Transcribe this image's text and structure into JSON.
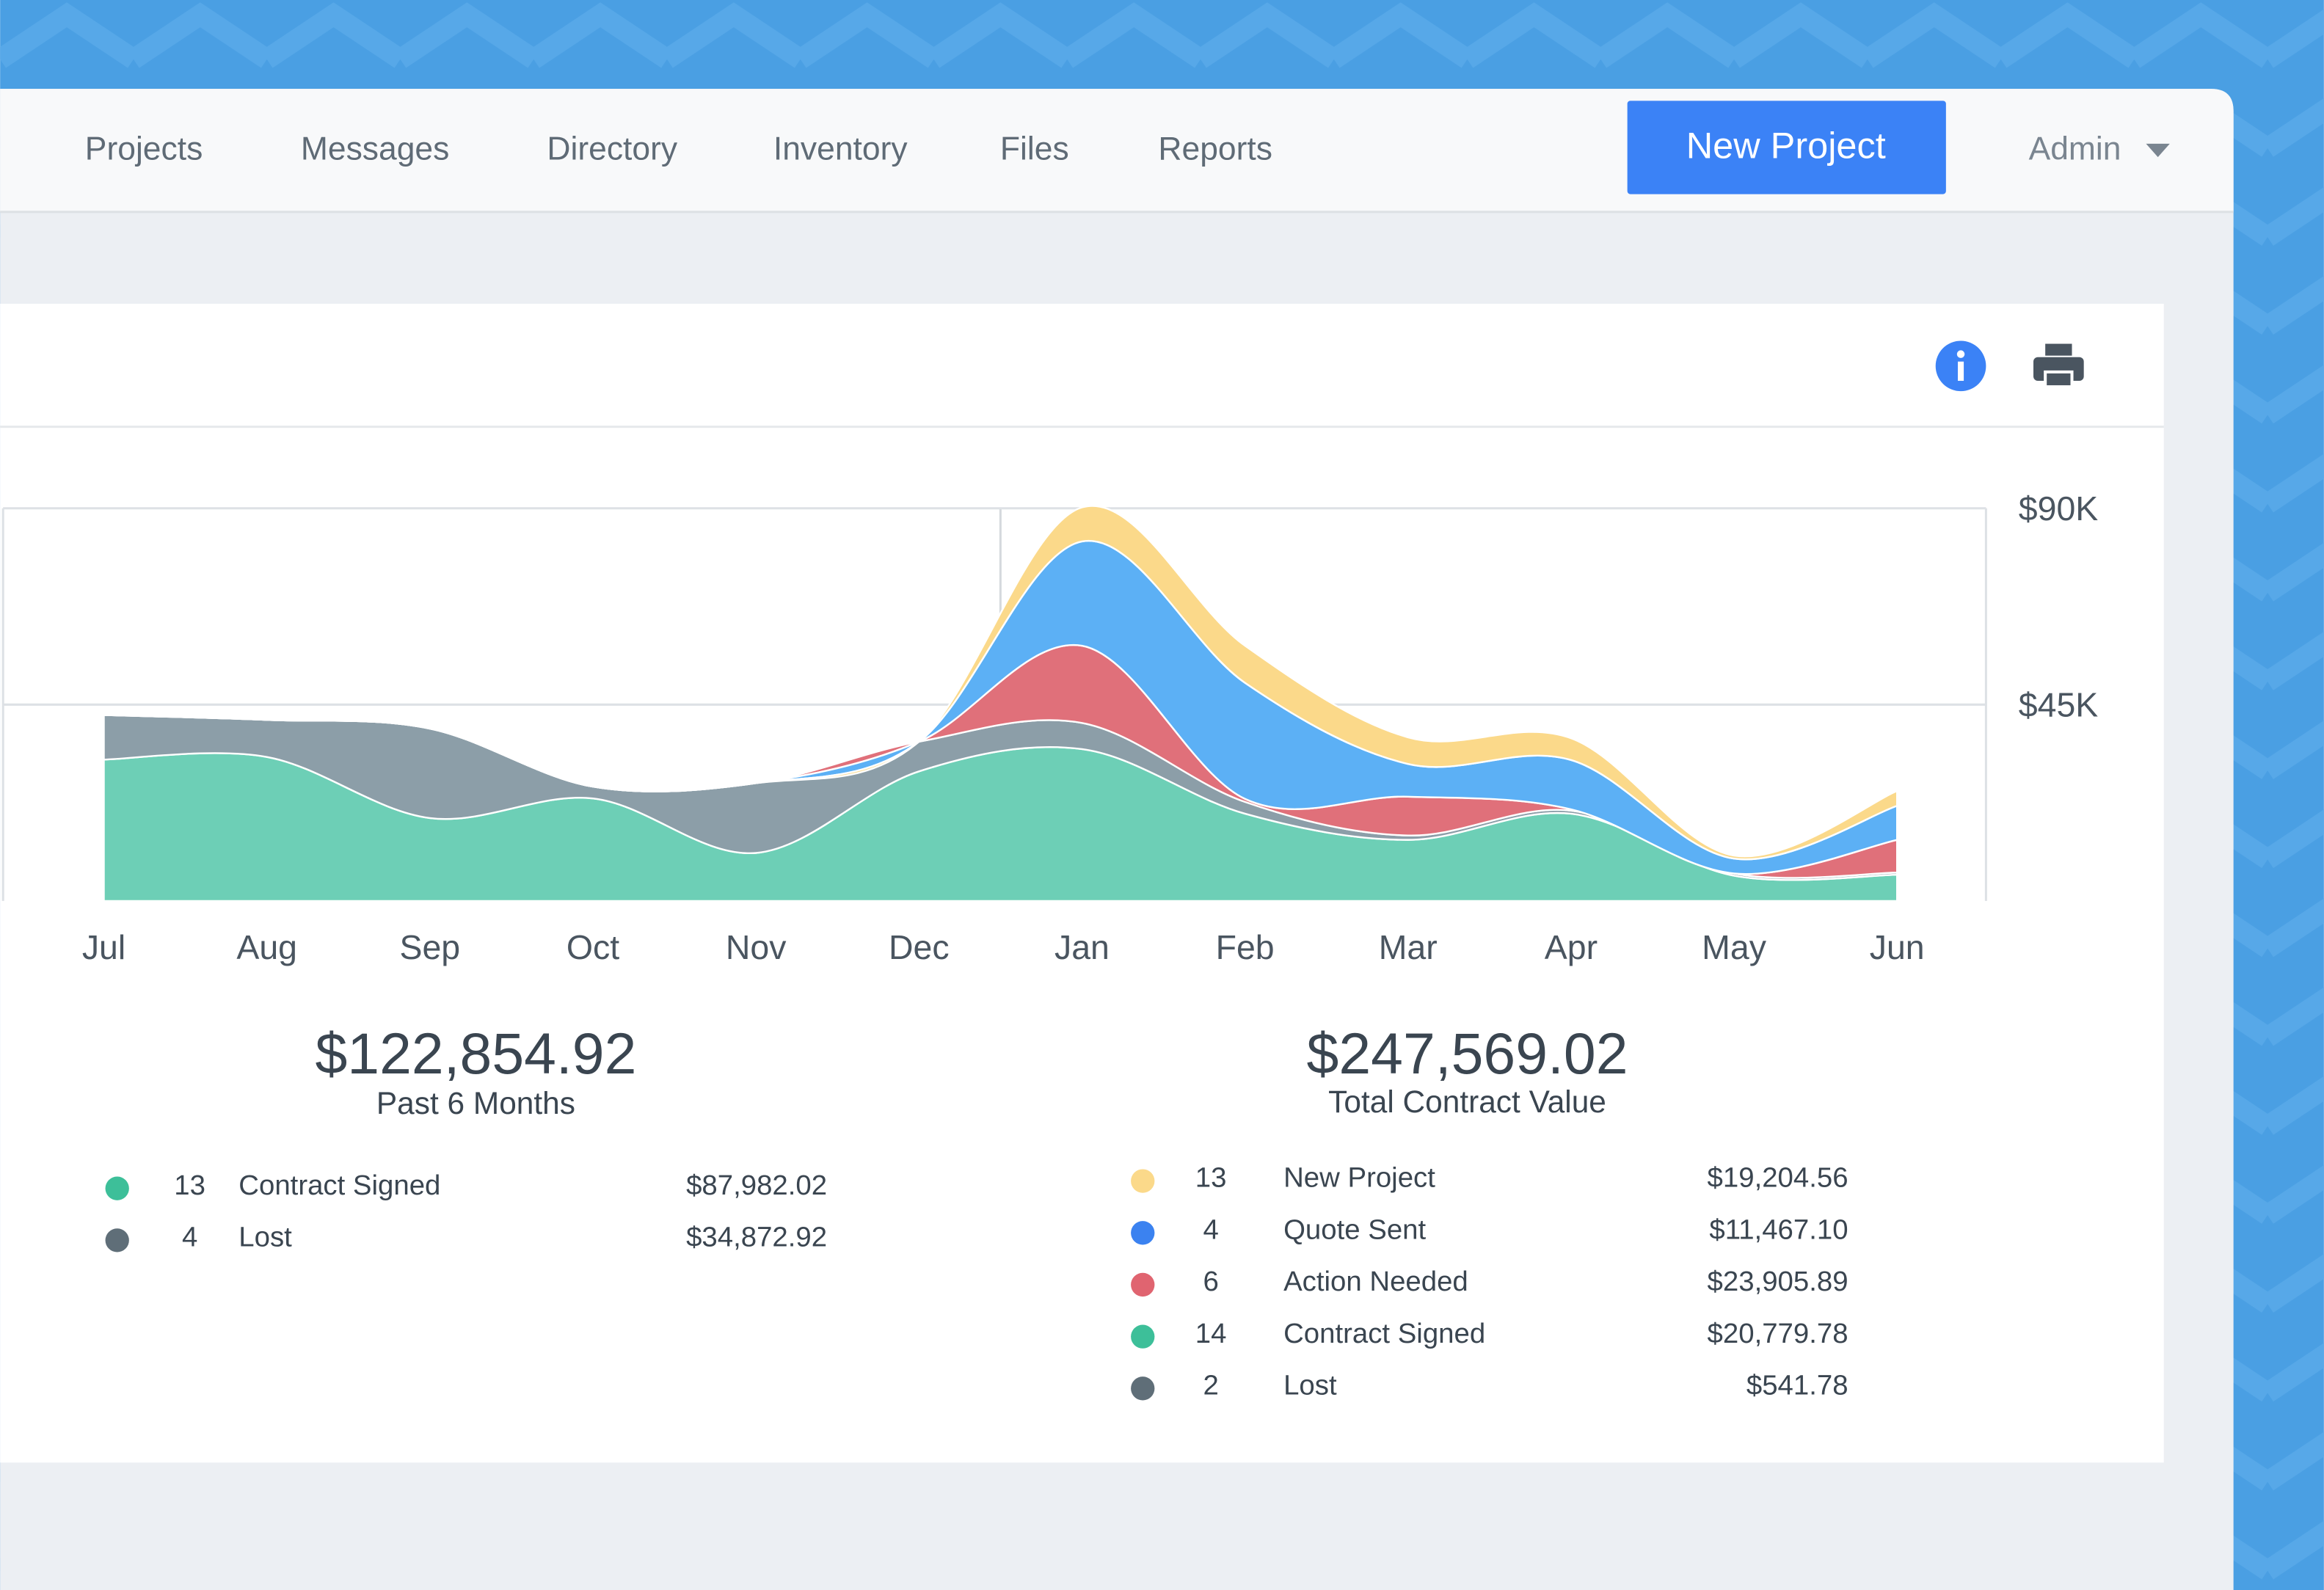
{
  "nav": [
    "Projects",
    "Messages",
    "Directory",
    "Inventory",
    "Files",
    "Reports"
  ],
  "button": "New Project",
  "user": "Admin",
  "chart_data": {
    "type": "stacked-area",
    "categories": [
      "Jul",
      "Aug",
      "Sep",
      "Oct",
      "Nov",
      "Dec",
      "Jan",
      "Feb",
      "Mar",
      "Apr",
      "May",
      "Jun"
    ],
    "series": [
      {
        "name": "Contract Signed",
        "color": "#6dcfb6",
        "values": [
          32400,
          33000,
          19000,
          23500,
          11000,
          29700,
          34800,
          20000,
          14000,
          20000,
          5800,
          6000
        ]
      },
      {
        "name": "Lost",
        "color": "#8c9ea8",
        "values": [
          10200,
          8500,
          20500,
          2700,
          16000,
          6800,
          6000,
          2700,
          1000,
          700,
          500,
          500
        ]
      },
      {
        "name": "Action Needed",
        "color": "#e0707a",
        "values": [
          0,
          0,
          0,
          0,
          0,
          0,
          17700,
          700,
          8900,
          300,
          0,
          7500
        ]
      },
      {
        "name": "Quote Sent",
        "color": "#5cb0f5",
        "values": [
          0,
          0,
          0,
          0,
          0,
          0,
          23900,
          26600,
          7500,
          11300,
          3400,
          7800
        ]
      },
      {
        "name": "New Project",
        "color": "#fbd98a",
        "values": [
          0,
          0,
          0,
          0,
          0,
          0,
          7800,
          8500,
          6100,
          5000,
          700,
          3400
        ]
      }
    ],
    "ylim": [
      0,
      90000
    ],
    "yticks": [
      {
        "value": 45000,
        "label": "$45K"
      },
      {
        "value": 90000,
        "label": "$90K"
      }
    ],
    "grid": true
  },
  "summaries": [
    {
      "amount": "$122,854.92",
      "label": "Past 6 Months",
      "rows": [
        {
          "color": "#3dbf99",
          "count": "13",
          "name": "Contract Signed",
          "amount": "$87,982.02"
        },
        {
          "color": "#5f6e78",
          "count": "4",
          "name": "Lost",
          "amount": "$34,872.92"
        }
      ]
    },
    {
      "amount": "$247,569.02",
      "label": "Total Contract Value",
      "rows": [
        {
          "color": "#fbd98a",
          "count": "13",
          "name": "New Project",
          "amount": "$19,204.56"
        },
        {
          "color": "#3b82f0",
          "count": "4",
          "name": "Quote Sent",
          "amount": "$11,467.10"
        },
        {
          "color": "#e06470",
          "count": "6",
          "name": "Action Needed",
          "amount": "$23,905.89"
        },
        {
          "color": "#3dbf99",
          "count": "14",
          "name": "Contract Signed",
          "amount": "$20,779.78"
        },
        {
          "color": "#5f6e78",
          "count": "2",
          "name": "Lost",
          "amount": "$541.78"
        }
      ]
    }
  ]
}
